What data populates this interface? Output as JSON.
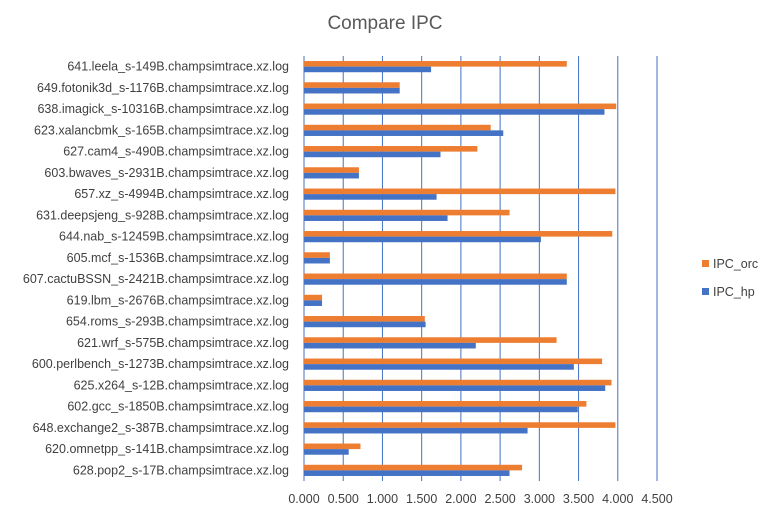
{
  "chart_data": {
    "type": "bar",
    "orientation": "horizontal",
    "title": "Compare IPC",
    "xlabel": "",
    "ylabel": "",
    "xlim": [
      0,
      4.5
    ],
    "x_ticks": [
      0,
      0.5,
      1.0,
      1.5,
      2.0,
      2.5,
      3.0,
      3.5,
      4.0,
      4.5
    ],
    "x_tick_labels": [
      "0.000",
      "0.500",
      "1.000",
      "1.500",
      "2.000",
      "2.500",
      "3.000",
      "3.500",
      "4.000",
      "4.500"
    ],
    "grid": true,
    "legend_position": "right",
    "categories": [
      "641.leela_s-149B.champsimtrace.xz.log",
      "649.fotonik3d_s-1176B.champsimtrace.xz.log",
      "638.imagick_s-10316B.champsimtrace.xz.log",
      "623.xalancbmk_s-165B.champsimtrace.xz.log",
      "627.cam4_s-490B.champsimtrace.xz.log",
      "603.bwaves_s-2931B.champsimtrace.xz.log",
      "657.xz_s-4994B.champsimtrace.xz.log",
      "631.deepsjeng_s-928B.champsimtrace.xz.log",
      "644.nab_s-12459B.champsimtrace.xz.log",
      "605.mcf_s-1536B.champsimtrace.xz.log",
      "607.cactuBSSN_s-2421B.champsimtrace.xz.log",
      "619.lbm_s-2676B.champsimtrace.xz.log",
      "654.roms_s-293B.champsimtrace.xz.log",
      "621.wrf_s-575B.champsimtrace.xz.log",
      "600.perlbench_s-1273B.champsimtrace.xz.log",
      "625.x264_s-12B.champsimtrace.xz.log",
      "602.gcc_s-1850B.champsimtrace.xz.log",
      "648.exchange2_s-387B.champsimtrace.xz.log",
      "620.omnetpp_s-141B.champsimtrace.xz.log",
      "628.pop2_s-17B.champsimtrace.xz.log"
    ],
    "series": [
      {
        "name": "IPC_orc",
        "color": "#ED7D31",
        "values": [
          3.35,
          1.22,
          3.98,
          2.38,
          2.21,
          0.7,
          3.97,
          2.62,
          3.93,
          0.33,
          3.35,
          0.23,
          1.54,
          3.22,
          3.8,
          3.92,
          3.6,
          3.97,
          0.72,
          2.78
        ]
      },
      {
        "name": "IPC_hp",
        "color": "#4472C4",
        "values": [
          1.62,
          1.22,
          3.83,
          2.54,
          1.74,
          0.7,
          1.69,
          1.83,
          3.02,
          0.33,
          3.35,
          0.23,
          1.55,
          2.19,
          3.44,
          3.84,
          3.49,
          2.85,
          0.57,
          2.62
        ]
      }
    ]
  }
}
